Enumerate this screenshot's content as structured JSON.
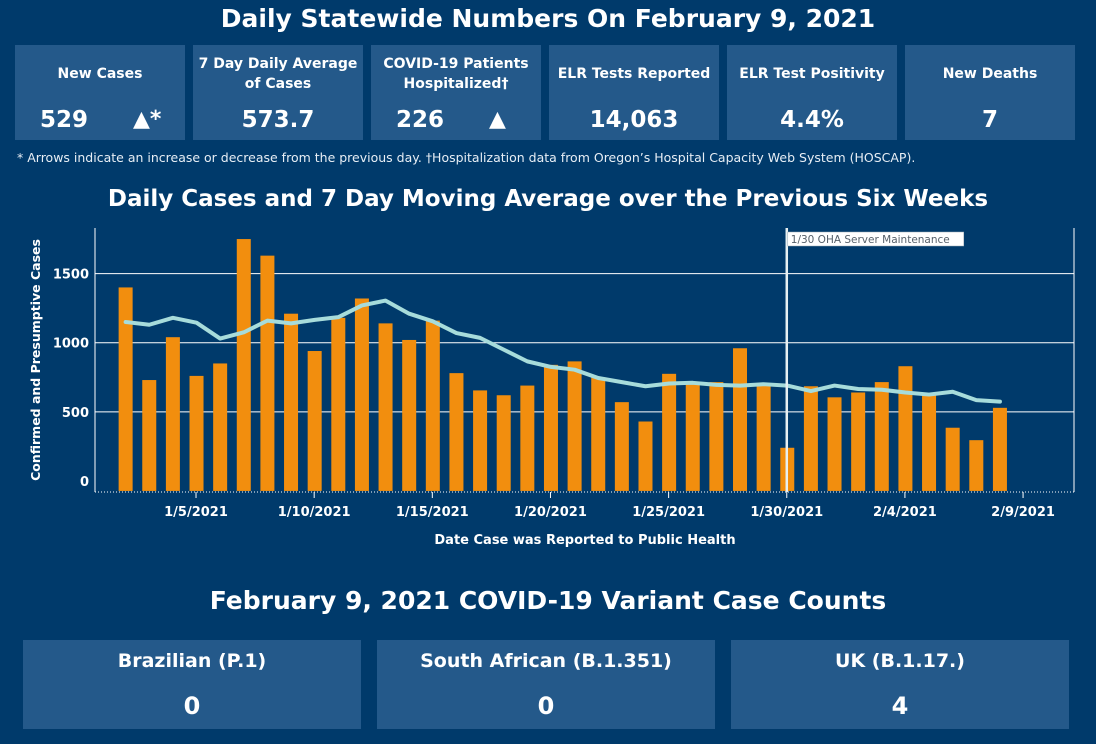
{
  "header": {
    "title": "Daily Statewide Numbers On February 9, 2021"
  },
  "cards": [
    {
      "label": "New Cases",
      "value": "529",
      "arrow": "▲*"
    },
    {
      "label": "7 Day Daily Average of Cases",
      "value": "573.7"
    },
    {
      "label": "COVID-19 Patients Hospitalized†",
      "value": "226",
      "arrow": "▲"
    },
    {
      "label": "ELR Tests Reported",
      "value": "14,063"
    },
    {
      "label": "ELR Test Positivity",
      "value": "4.4%"
    },
    {
      "label": "New Deaths",
      "value": "7"
    }
  ],
  "footnote": "* Arrows indicate an increase or decrease from the previous day. †Hospitalization data from Oregon’s Hospital Capacity Web System (HOSCAP).",
  "chart_data": {
    "type": "bar",
    "title": "Daily Cases and 7 Day Moving Average over the Previous Six Weeks",
    "xlabel": "Date Case was Reported to Public Health",
    "ylabel": "Confirmed and Presumptive Cases",
    "x_ticks": [
      "1/5/2021",
      "1/10/2021",
      "1/15/2021",
      "1/20/2021",
      "1/25/2021",
      "1/30/2021",
      "2/4/2021",
      "2/9/2021"
    ],
    "y_ticks": [
      0,
      500,
      1000,
      1500
    ],
    "ylim": [
      -80,
      1830
    ],
    "grid": true,
    "annotation": {
      "label": "1/30 OHA Server Maintenance",
      "date": "1/30/2021"
    },
    "categories": [
      "1/2",
      "1/3",
      "1/4",
      "1/5",
      "1/6",
      "1/7",
      "1/8",
      "1/9",
      "1/10",
      "1/11",
      "1/12",
      "1/13",
      "1/14",
      "1/15",
      "1/16",
      "1/17",
      "1/18",
      "1/19",
      "1/20",
      "1/21",
      "1/22",
      "1/23",
      "1/24",
      "1/25",
      "1/26",
      "1/27",
      "1/28",
      "1/29",
      "1/30",
      "1/31",
      "2/1",
      "2/2",
      "2/3",
      "2/4",
      "2/5",
      "2/6",
      "2/7",
      "2/8"
    ],
    "series": [
      {
        "kind": "bar",
        "color": "#f28e0e",
        "values": [
          1400,
          730,
          1040,
          760,
          850,
          1750,
          1630,
          1210,
          940,
          1180,
          1320,
          1140,
          1020,
          1160,
          780,
          655,
          620,
          690,
          840,
          865,
          750,
          570,
          430,
          775,
          700,
          715,
          960,
          700,
          240,
          685,
          605,
          640,
          715,
          830,
          620,
          385,
          295,
          529
        ]
      },
      {
        "kind": "line",
        "color": "#a7dcdb",
        "values": [
          1150,
          1130,
          1180,
          1145,
          1030,
          1075,
          1160,
          1140,
          1165,
          1185,
          1270,
          1305,
          1210,
          1155,
          1070,
          1035,
          950,
          865,
          825,
          805,
          745,
          715,
          685,
          705,
          710,
          695,
          690,
          700,
          690,
          650,
          690,
          665,
          660,
          640,
          625,
          645,
          585,
          574
        ]
      }
    ]
  },
  "variants": {
    "title": "February 9, 2021 COVID-19 Variant Case Counts",
    "items": [
      {
        "label": "Brazilian (P.1)",
        "value": "0"
      },
      {
        "label": "South African (B.1.351)",
        "value": "0"
      },
      {
        "label": "UK (B.1.17.)",
        "value": "4"
      }
    ]
  }
}
